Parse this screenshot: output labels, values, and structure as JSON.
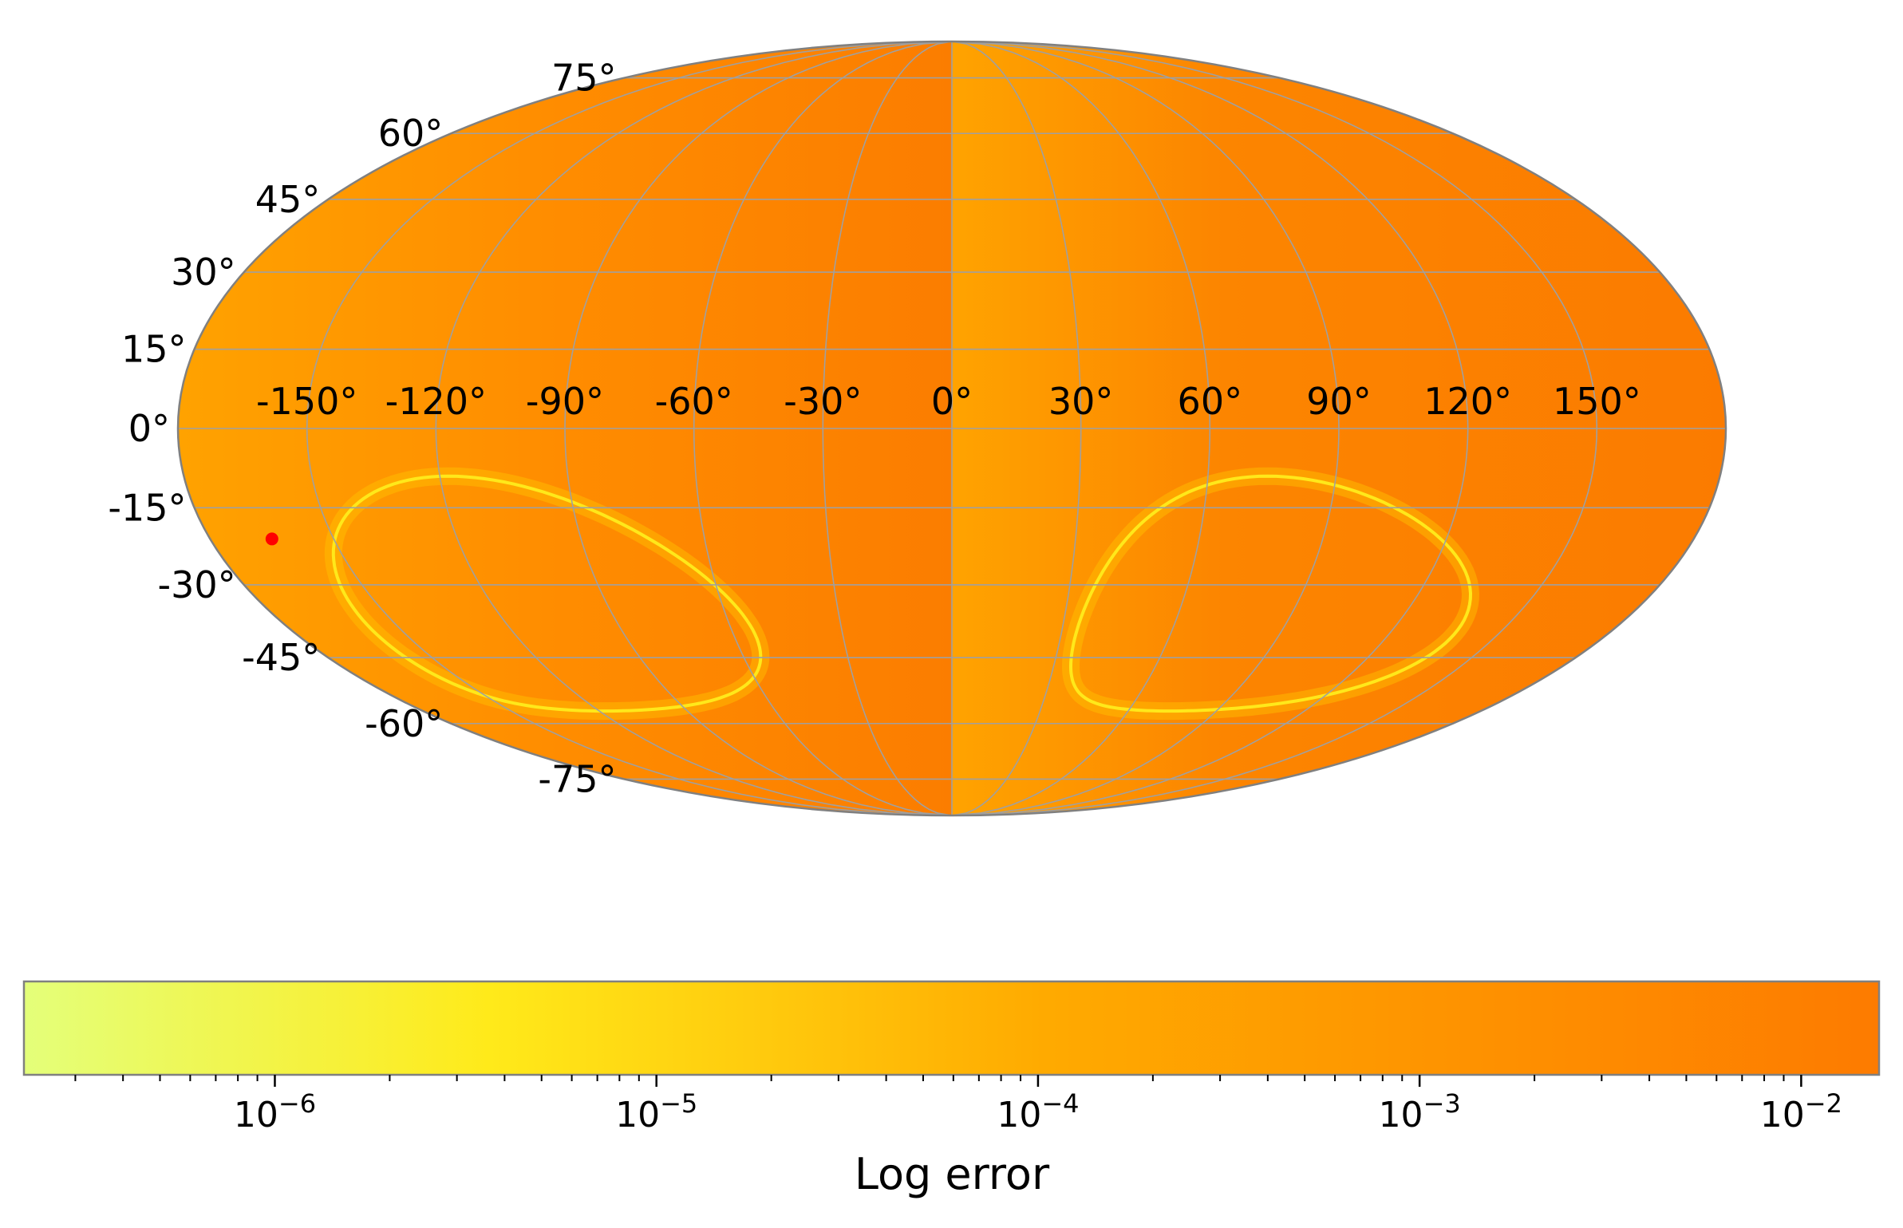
{
  "chart_data": {
    "type": "heatmap",
    "projection": "mollweide",
    "grid": true,
    "longitude_ticks": [
      -150,
      -120,
      -90,
      -60,
      -30,
      0,
      30,
      60,
      90,
      120,
      150
    ],
    "latitude_ticks": [
      75,
      60,
      45,
      30,
      15,
      0,
      -15,
      -30,
      -45,
      -60,
      -75
    ],
    "longitude_labels": [
      "-150°",
      "-120°",
      "-90°",
      "-60°",
      "-30°",
      "0°",
      "30°",
      "60°",
      "90°",
      "120°",
      "150°"
    ],
    "latitude_labels": [
      "75°",
      "60°",
      "45°",
      "30°",
      "15°",
      "0°",
      "-15°",
      "-30°",
      "-45°",
      "-60°",
      "-75°"
    ],
    "marked_point": {
      "lon": -165,
      "lat": -21,
      "color": "#ff0000"
    },
    "low_error_contours": [
      {
        "center_lon": -112,
        "center_lat": -37,
        "error": 1e-06
      },
      {
        "center_lon": 80,
        "center_lat": -37,
        "error": 1e-06
      }
    ],
    "colorbar": {
      "label": "Log error",
      "scale": "log",
      "range": [
        2.2e-07,
        0.016
      ],
      "ticks": [
        1e-06,
        1e-05,
        0.0001,
        0.001,
        0.01
      ],
      "tick_labels": [
        {
          "base": "10",
          "exp": "−6"
        },
        {
          "base": "10",
          "exp": "−5"
        },
        {
          "base": "10",
          "exp": "−4"
        },
        {
          "base": "10",
          "exp": "−3"
        },
        {
          "base": "10",
          "exp": "−2"
        }
      ],
      "colors": [
        "#e4ff7a",
        "#ffea1a",
        "#ffaa00",
        "#fd7b00"
      ]
    }
  }
}
